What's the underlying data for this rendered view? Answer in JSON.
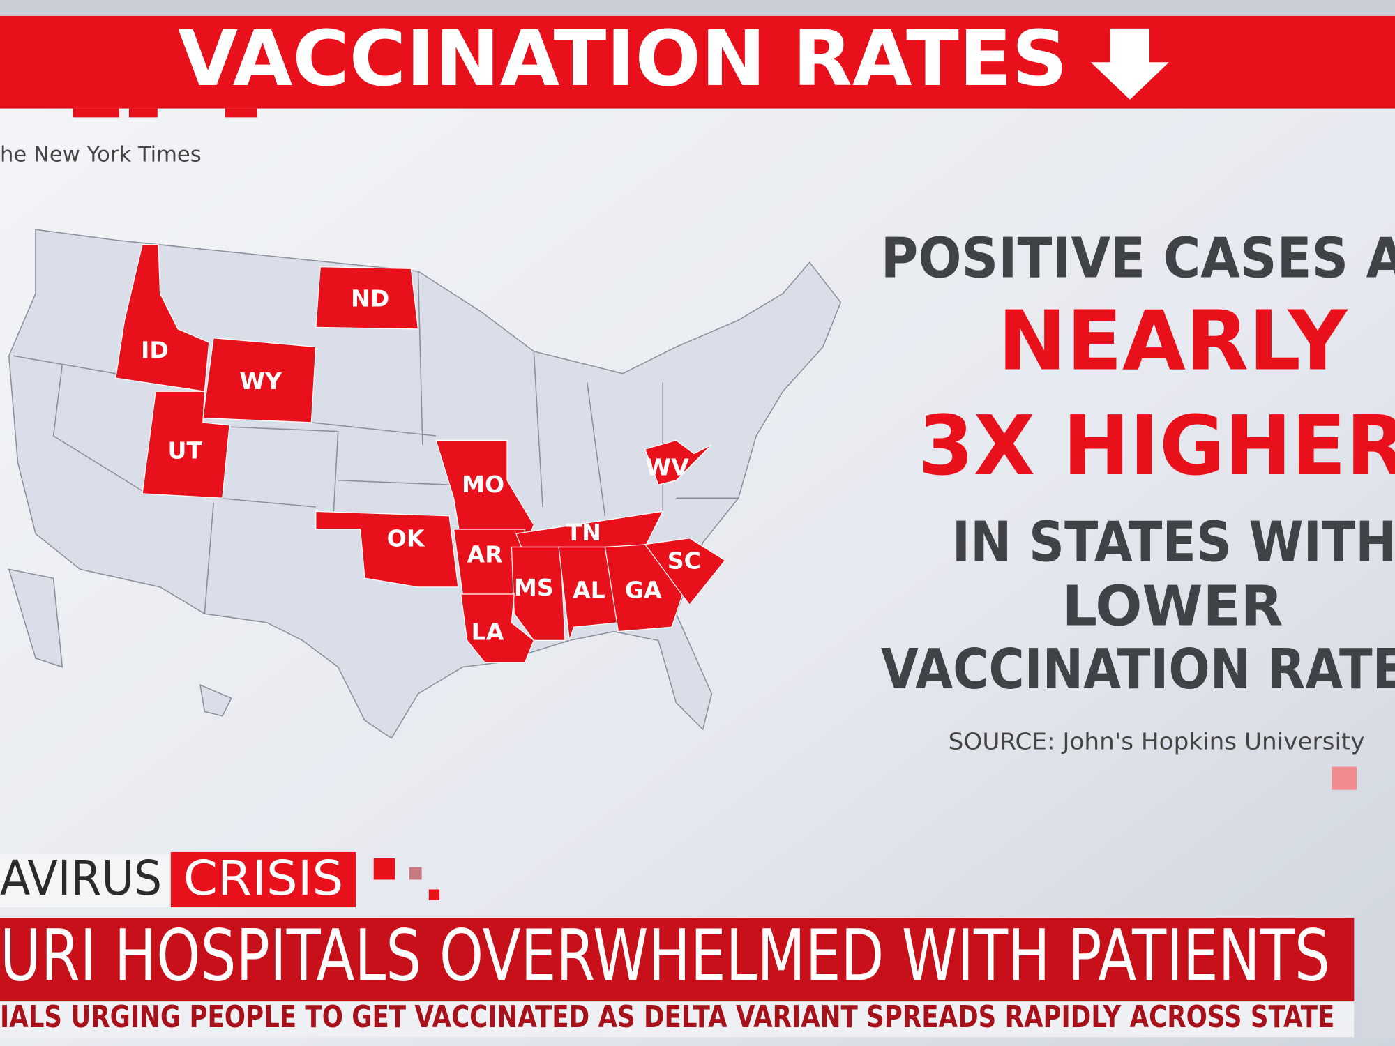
{
  "header": {
    "title": "VACCINATION RATES",
    "credit": "he New York Times"
  },
  "map": {
    "states": [
      "ID",
      "WY",
      "ND",
      "UT",
      "MO",
      "OK",
      "AR",
      "TN",
      "MS",
      "AL",
      "GA",
      "SC",
      "LA",
      "WV"
    ]
  },
  "panel": {
    "line1": "POSITIVE CASES A",
    "line2": "NEARLY",
    "line3": "3X HIGHER",
    "line4": "IN STATES WITH",
    "line5": "LOWER",
    "line6": "VACCINATION RATE",
    "source": "SOURCE: John's Hopkins University"
  },
  "lower_third": {
    "tag_left": "AVIRUS",
    "tag_right": "CRISIS",
    "headline": "URI HOSPITALS OVERWHELMED WITH PATIENTS",
    "subline": "IALS URGING PEOPLE TO GET VACCINATED AS DELTA VARIANT SPREADS RAPIDLY ACROSS STATE"
  }
}
